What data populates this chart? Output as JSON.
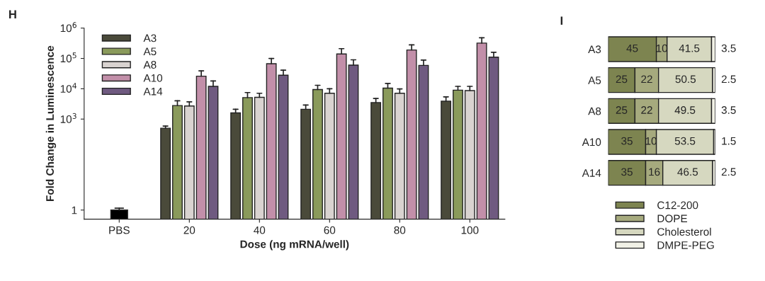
{
  "chart_data": [
    {
      "type": "bar",
      "title": "H",
      "xlabel": "Dose (ng mRNA/well)",
      "ylabel": "Fold Change in Luminescence",
      "log": "y",
      "legend": "top left",
      "grid": false,
      "categories": [
        "PBS",
        "20",
        "40",
        "60",
        "80",
        "100"
      ],
      "ylim": [
        0.5,
        1000000
      ],
      "yticks": [
        1,
        {
          "value": 1000,
          "label": "10$^{3}$"
        },
        {
          "value": 10000,
          "label": "10$^{4}$"
        },
        {
          "value": 100000,
          "label": "10$^{5}$"
        },
        {
          "value": 1000000,
          "label": "10$^{6}$"
        }
      ],
      "series": [
        {
          "color": "#000000",
          "values": [
            1,
            null,
            null,
            null,
            null,
            null
          ],
          "errors": [
            [
              1,
              1.15
            ],
            null,
            null,
            null,
            null,
            null
          ]
        },
        {
          "name": "A3",
          "color": "#4a4a3a",
          "values": [
            null,
            500,
            1600,
            2100,
            3500,
            3900
          ],
          "errors": [
            null,
            [
              500,
              590
            ],
            [
              1600,
              2100
            ],
            [
              2100,
              2900
            ],
            [
              3500,
              4800
            ],
            [
              3900,
              5400
            ]
          ]
        },
        {
          "name": "A5",
          "color": "#8a9a5b",
          "values": [
            null,
            2800,
            5100,
            9400,
            10500,
            9000
          ],
          "errors": [
            null,
            [
              2800,
              4000
            ],
            [
              5100,
              7500
            ],
            [
              9400,
              13000
            ],
            [
              10500,
              15000
            ],
            [
              9000,
              12000
            ]
          ]
        },
        {
          "name": "A8",
          "color": "#d9d3d0",
          "values": [
            null,
            2700,
            5200,
            7100,
            7100,
            8700
          ],
          "errors": [
            null,
            [
              2700,
              3700
            ],
            [
              5200,
              7100
            ],
            [
              7100,
              10000
            ],
            [
              7100,
              9900
            ],
            [
              8700,
              12000
            ]
          ]
        },
        {
          "name": "A10",
          "color": "#c28fa9",
          "values": [
            null,
            26000,
            67000,
            140000,
            190000,
            320000
          ],
          "errors": [
            null,
            [
              26000,
              39000
            ],
            [
              67000,
              100000
            ],
            [
              140000,
              210000
            ],
            [
              190000,
              280000
            ],
            [
              320000,
              480000
            ]
          ]
        },
        {
          "name": "A14",
          "color": "#6f5a80",
          "values": [
            null,
            12000,
            28000,
            60000,
            59000,
            110000
          ],
          "errors": [
            null,
            [
              12000,
              18000
            ],
            [
              28000,
              41000
            ],
            [
              60000,
              90000
            ],
            [
              59000,
              88000
            ],
            [
              110000,
              160000
            ]
          ]
        }
      ]
    },
    {
      "type": "bar",
      "title": "I",
      "orientation": "horizontal",
      "stacked": true,
      "data_labels": true,
      "legend": "bottom",
      "tick_labels": "y",
      "categories": [
        "A3",
        "A5",
        "A8",
        "A10",
        "A14"
      ],
      "xlim": [
        0,
        100
      ],
      "series": [
        {
          "name": "C12-200",
          "color": "#7d8450",
          "values": [
            45,
            25,
            25,
            35,
            35
          ]
        },
        {
          "name": "DOPE",
          "color": "#a6aa7e",
          "values": [
            10,
            22,
            22,
            10,
            16
          ]
        },
        {
          "name": "Cholesterol",
          "color": "#d6d8c0",
          "values": [
            41.5,
            50.5,
            49.5,
            53.5,
            46.5
          ]
        },
        {
          "name": "DMPE-PEG",
          "color": "#f1f1e6",
          "values": [
            3.5,
            2.5,
            3.5,
            1.5,
            2.5
          ]
        }
      ]
    }
  ]
}
